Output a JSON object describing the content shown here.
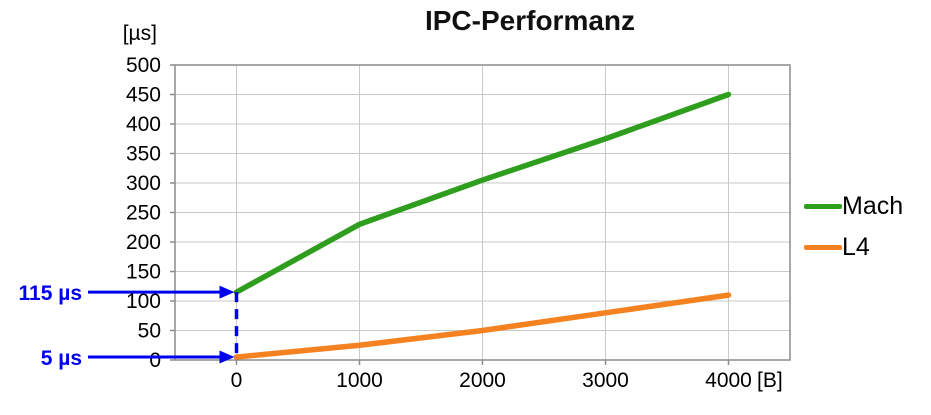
{
  "chart_data": {
    "type": "line",
    "title": "IPC-Performanz",
    "y_unit_label": "[µs]",
    "x_unit_label": "[B]",
    "x_ticks": [
      0,
      1000,
      2000,
      3000,
      4000
    ],
    "y_ticks": [
      0,
      50,
      100,
      150,
      200,
      250,
      300,
      350,
      400,
      450,
      500
    ],
    "ylim": [
      0,
      500
    ],
    "grid": true,
    "legend_position": "right",
    "colors": {
      "gridline": "#c9c9c9",
      "axis": "#8c8c8c",
      "annotation": "#0000ee"
    },
    "series": [
      {
        "name": "Mach",
        "color": "#2f9e1e",
        "x": [
          0,
          1000,
          2000,
          3000,
          4000
        ],
        "values": [
          115,
          230,
          305,
          375,
          450
        ]
      },
      {
        "name": "L4",
        "color": "#f58220",
        "x": [
          0,
          1000,
          2000,
          3000,
          4000
        ],
        "values": [
          5,
          25,
          50,
          80,
          110
        ]
      }
    ],
    "annotations": [
      {
        "label": "115 µs",
        "x": 0,
        "y": 115,
        "dropline": true,
        "color": "#0000ee"
      },
      {
        "label": "5 µs",
        "x": 0,
        "y": 5,
        "dropline": false,
        "color": "#0000ee"
      }
    ]
  }
}
